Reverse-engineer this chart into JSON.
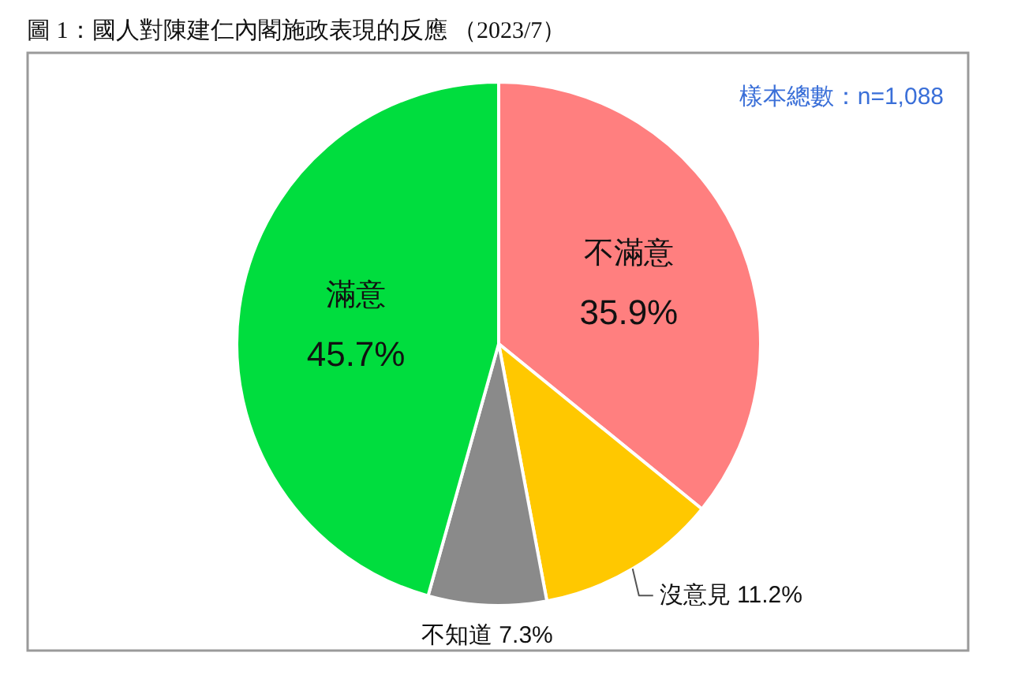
{
  "chart_data": {
    "type": "pie",
    "title": "圖 1：國人對陳建仁內閣施政表現的反應 （2023/7）",
    "categories": [
      "不滿意",
      "沒意見",
      "不知道",
      "滿意"
    ],
    "values": [
      35.9,
      11.2,
      7.3,
      45.7
    ],
    "value_labels": [
      "35.9%",
      "11.2%",
      "7.3%",
      "45.7%"
    ],
    "colors": [
      "#ff7f7f",
      "#ffc800",
      "#8a8a8a",
      "#00dd3e"
    ],
    "annotations": [
      "樣本總數：n=1,088"
    ]
  }
}
